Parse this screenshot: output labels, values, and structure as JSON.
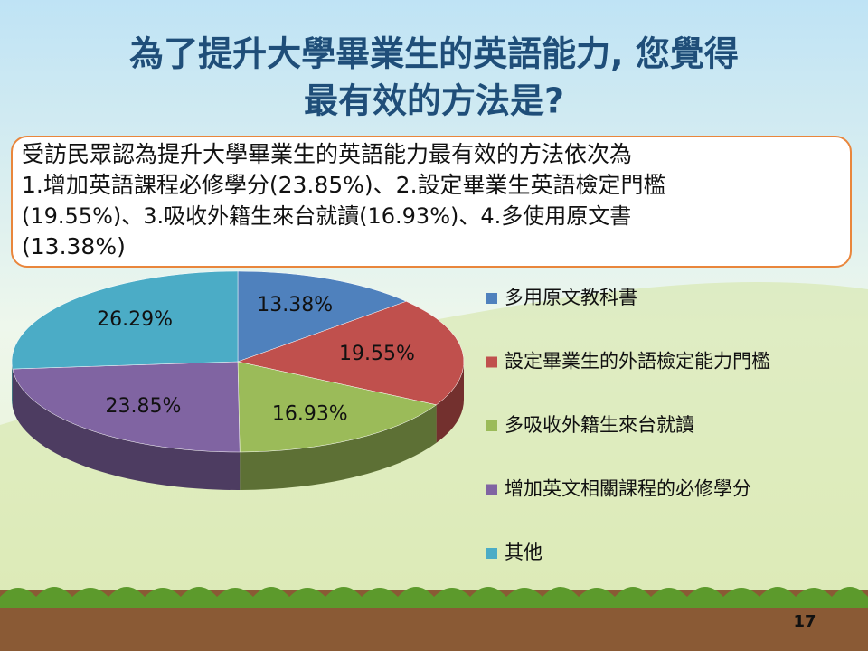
{
  "chart_data": {
    "type": "pie",
    "title": [
      "為了提升大學畢業生的英語能力, 您覺得",
      "最有效的方法是?"
    ],
    "categories": [
      "多用原文教科書",
      "設定畢業生的外語檢定能力門檻",
      "多吸收外籍生來台就讀",
      "增加英文相關課程的必修學分",
      "其他"
    ],
    "values": [
      13.38,
      19.55,
      16.93,
      23.85,
      26.29
    ],
    "value_labels": [
      "13.38%",
      "19.55%",
      "16.93%",
      "23.85%",
      "26.29%"
    ],
    "colors": [
      "#4f81bd",
      "#c0504d",
      "#9bbb59",
      "#8064a2",
      "#4bacc6"
    ],
    "legend": "right"
  },
  "summary": [
    "受訪民眾認為提升大學畢業生的英語能力最有效的方法依次為",
    "1.增加英語課程必修學分(23.85%)、2.設定畢業生英語檢定門檻",
    "(19.55%)、3.吸收外籍生來台就讀(16.93%)、4.多使用原文書",
    "(13.38%)"
  ],
  "page_number": "17"
}
